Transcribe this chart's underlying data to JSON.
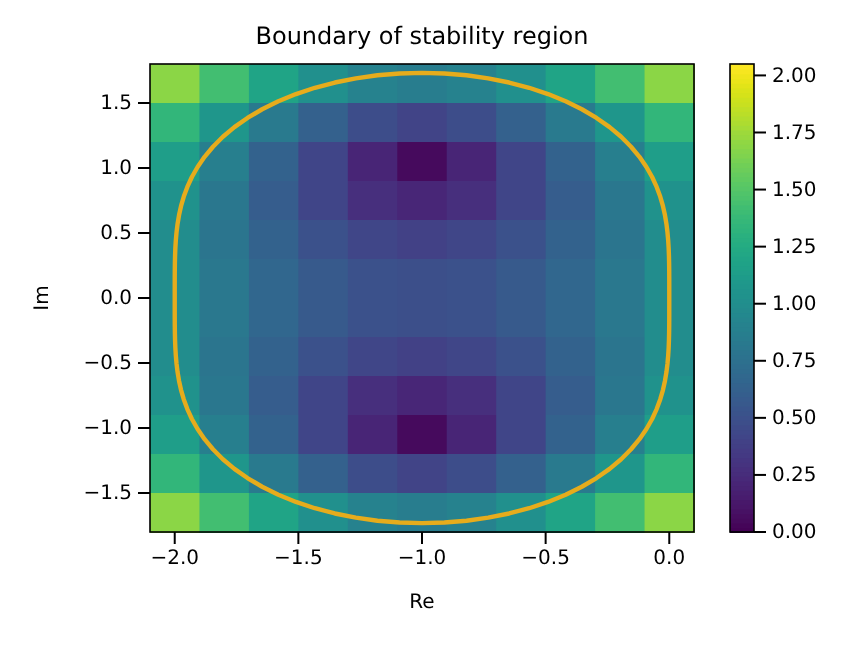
{
  "chart_data": {
    "type": "heatmap",
    "title": "Boundary of stability region",
    "xlabel": "Re",
    "ylabel": "Im",
    "cells": [
      [
        1.69,
        1.43,
        1.2,
        1.02,
        0.9,
        0.86,
        0.9,
        1.02,
        1.2,
        1.43,
        1.69
      ],
      [
        1.35,
        1.08,
        0.84,
        0.63,
        0.48,
        0.41,
        0.48,
        0.63,
        0.84,
        1.08,
        1.35
      ],
      [
        1.14,
        0.88,
        0.64,
        0.42,
        0.21,
        0.05,
        0.21,
        0.42,
        0.64,
        0.88,
        1.14
      ],
      [
        1.04,
        0.81,
        0.6,
        0.42,
        0.28,
        0.22,
        0.28,
        0.42,
        0.6,
        0.81,
        1.04
      ],
      [
        1.0,
        0.8,
        0.64,
        0.51,
        0.43,
        0.4,
        0.43,
        0.51,
        0.64,
        0.8,
        1.0
      ],
      [
        1.0,
        0.82,
        0.68,
        0.57,
        0.51,
        0.49,
        0.51,
        0.57,
        0.68,
        0.82,
        1.0
      ],
      [
        1.0,
        0.82,
        0.68,
        0.57,
        0.51,
        0.49,
        0.51,
        0.57,
        0.68,
        0.82,
        1.0
      ],
      [
        1.0,
        0.8,
        0.64,
        0.51,
        0.43,
        0.4,
        0.43,
        0.51,
        0.64,
        0.8,
        1.0
      ],
      [
        1.04,
        0.81,
        0.6,
        0.42,
        0.28,
        0.22,
        0.28,
        0.42,
        0.6,
        0.81,
        1.04
      ],
      [
        1.14,
        0.88,
        0.64,
        0.42,
        0.21,
        0.05,
        0.21,
        0.42,
        0.64,
        0.88,
        1.14
      ],
      [
        1.35,
        1.08,
        0.84,
        0.63,
        0.48,
        0.41,
        0.48,
        0.63,
        0.84,
        1.08,
        1.35
      ],
      [
        1.69,
        1.43,
        1.2,
        1.02,
        0.9,
        0.86,
        0.9,
        1.02,
        1.2,
        1.43,
        1.69
      ]
    ],
    "xlim": [
      -2.1,
      0.1
    ],
    "ylim": [
      -1.8,
      1.8
    ],
    "xticks": [
      {
        "value": -2,
        "label": "−2.0"
      },
      {
        "value": -1.5,
        "label": "−1.5"
      },
      {
        "value": -1,
        "label": "−1.0"
      },
      {
        "value": -0.5,
        "label": "−0.5"
      },
      {
        "value": 0,
        "label": "0.0"
      }
    ],
    "yticks": [
      {
        "value": -1.5,
        "label": "−1.5"
      },
      {
        "value": -1,
        "label": "−1.0"
      },
      {
        "value": -0.5,
        "label": "−0.5"
      },
      {
        "value": 0,
        "label": "0.0"
      },
      {
        "value": 0.5,
        "label": "0.5"
      },
      {
        "value": 1,
        "label": "1.0"
      },
      {
        "value": 1.5,
        "label": "1.5"
      }
    ],
    "clim": [
      0,
      2.05
    ],
    "cticks": [
      {
        "value": 0,
        "label": "0.00"
      },
      {
        "value": 0.25,
        "label": "0.25"
      },
      {
        "value": 0.5,
        "label": "0.50"
      },
      {
        "value": 0.75,
        "label": "0.75"
      },
      {
        "value": 1,
        "label": "1.00"
      },
      {
        "value": 1.25,
        "label": "1.25"
      },
      {
        "value": 1.5,
        "label": "1.50"
      },
      {
        "value": 1.75,
        "label": "1.75"
      },
      {
        "value": 2,
        "label": "2.00"
      }
    ]
  }
}
